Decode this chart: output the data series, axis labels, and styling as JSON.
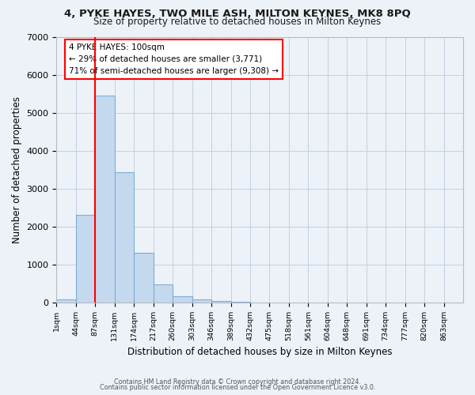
{
  "title_line1": "4, PYKE HAYES, TWO MILE ASH, MILTON KEYNES, MK8 8PQ",
  "title_line2": "Size of property relative to detached houses in Milton Keynes",
  "xlabel": "Distribution of detached houses by size in Milton Keynes",
  "ylabel": "Number of detached properties",
  "footer_line1": "Contains HM Land Registry data © Crown copyright and database right 2024.",
  "footer_line2": "Contains public sector information licensed under the Open Government Licence v3.0.",
  "bar_facecolor": "#c5d9ee",
  "bar_edgecolor": "#7aafd4",
  "categories": [
    "1sqm",
    "44sqm",
    "87sqm",
    "131sqm",
    "174sqm",
    "217sqm",
    "260sqm",
    "303sqm",
    "346sqm",
    "389sqm",
    "432sqm",
    "475sqm",
    "518sqm",
    "561sqm",
    "604sqm",
    "648sqm",
    "691sqm",
    "734sqm",
    "777sqm",
    "820sqm",
    "863sqm"
  ],
  "values": [
    80,
    2300,
    5450,
    3430,
    1310,
    470,
    165,
    80,
    50,
    30,
    0,
    0,
    0,
    0,
    0,
    0,
    0,
    0,
    0,
    0,
    0
  ],
  "ylim": [
    0,
    7000
  ],
  "yticks": [
    0,
    1000,
    2000,
    3000,
    4000,
    5000,
    6000,
    7000
  ],
  "red_line_x": 2,
  "annotation_line1": "4 PYKE HAYES: 100sqm",
  "annotation_line2": "← 29% of detached houses are smaller (3,771)",
  "annotation_line3": "71% of semi-detached houses are larger (9,308) →",
  "bg_color": "#edf2f9",
  "grid_color": "#c5cfe0"
}
